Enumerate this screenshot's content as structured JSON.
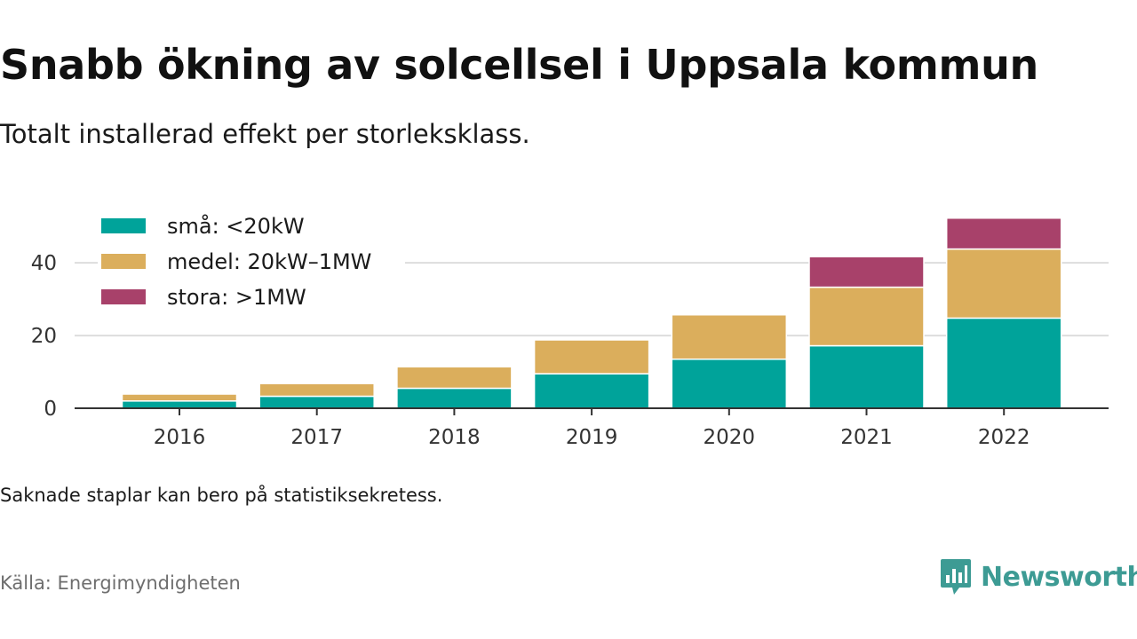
{
  "header": {
    "title": "Snabb ökning av solcellsel i Uppsala kommun",
    "subtitle": "Totalt installerad effekt per storleksklass."
  },
  "footer": {
    "note": "Saknade staplar kan bero på statistiksekretess.",
    "source": "Källa: Energimyndigheten",
    "brand": "Newsworthy"
  },
  "colors": {
    "small": "#00a39a",
    "medium": "#dbae5c",
    "large": "#a8416a",
    "gridline": "#dddddd",
    "axis": "#333333",
    "brand": "#3d9b94"
  },
  "chart_data": {
    "type": "bar",
    "stacked": true,
    "title": "Snabb ökning av solcellsel i Uppsala kommun",
    "subtitle": "Totalt installerad effekt per storleksklass.",
    "xlabel": "",
    "ylabel": "",
    "categories": [
      "2016",
      "2017",
      "2018",
      "2019",
      "2020",
      "2021",
      "2022"
    ],
    "series": [
      {
        "name": "små: <20kW",
        "color": "#00a39a",
        "values": [
          2,
          3.3,
          5.5,
          9.5,
          13.5,
          17.2,
          24.8
        ]
      },
      {
        "name": "medel: 20kW–1MW",
        "color": "#dbae5c",
        "values": [
          1.9,
          3.5,
          5.9,
          9.3,
          12.2,
          16.1,
          19
        ]
      },
      {
        "name": "stora: >1MW",
        "color": "#a8416a",
        "values": [
          0,
          0,
          0,
          0,
          0,
          8.4,
          8.5
        ]
      }
    ],
    "ylim": [
      0,
      52
    ],
    "yticks": [
      0,
      20,
      40
    ],
    "grid": true,
    "legend": "top-left"
  }
}
